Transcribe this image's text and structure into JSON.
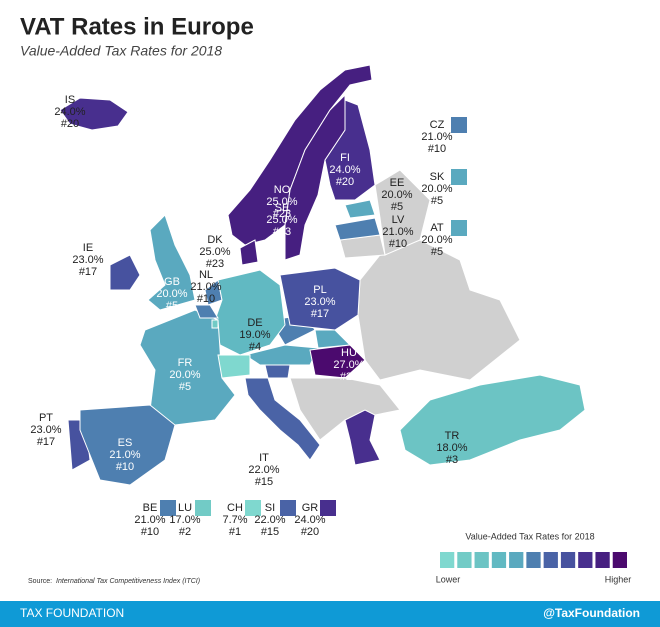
{
  "title": "VAT Rates in Europe",
  "subtitle": "Value-Added Tax Rates for 2018",
  "countries": [
    {
      "code": "IS",
      "rate": "24.0%",
      "rank": "#20",
      "color": "#482f8e"
    },
    {
      "code": "CZ",
      "rate": "21.0%",
      "rank": "#10",
      "color": "#4e7fb0"
    },
    {
      "code": "SK",
      "rate": "20.0%",
      "rank": "#5",
      "color": "#5aa9bf"
    },
    {
      "code": "AT",
      "rate": "20.0%",
      "rank": "#5",
      "color": "#5aa9bf"
    },
    {
      "code": "FI",
      "rate": "24.0%",
      "rank": "#20",
      "color": "#482f8e"
    },
    {
      "code": "EE",
      "rate": "20.0%",
      "rank": "#5",
      "color": "#5aa9bf"
    },
    {
      "code": "LV",
      "rate": "21.0%",
      "rank": "#10",
      "color": "#4e7fb0"
    },
    {
      "code": "NO",
      "rate": "25.0%",
      "rank": "#23",
      "color": "#461f80"
    },
    {
      "code": "SE",
      "rate": "25.0%",
      "rank": "#23",
      "color": "#461f80"
    },
    {
      "code": "DK",
      "rate": "25.0%",
      "rank": "#23",
      "color": "#461f80"
    },
    {
      "code": "IE",
      "rate": "23.0%",
      "rank": "#17",
      "color": "#47529f"
    },
    {
      "code": "NL",
      "rate": "21.0%",
      "rank": "#10",
      "color": "#4e7fb0"
    },
    {
      "code": "GB",
      "rate": "20.0%",
      "rank": "#5",
      "color": "#5aa9bf"
    },
    {
      "code": "PL",
      "rate": "23.0%",
      "rank": "#17",
      "color": "#47529f"
    },
    {
      "code": "DE",
      "rate": "19.0%",
      "rank": "#4",
      "color": "#61b9c2"
    },
    {
      "code": "HU",
      "rate": "27.0%",
      "rank": "#26",
      "color": "#4b0a6e"
    },
    {
      "code": "FR",
      "rate": "20.0%",
      "rank": "#5",
      "color": "#5aa9bf"
    },
    {
      "code": "PT",
      "rate": "23.0%",
      "rank": "#17",
      "color": "#47529f"
    },
    {
      "code": "ES",
      "rate": "21.0%",
      "rank": "#10",
      "color": "#4e7fb0"
    },
    {
      "code": "IT",
      "rate": "22.0%",
      "rank": "#15",
      "color": "#4a63a6"
    },
    {
      "code": "TR",
      "rate": "18.0%",
      "rank": "#3",
      "color": "#6cc4c4"
    },
    {
      "code": "BE",
      "rate": "21.0%",
      "rank": "#10",
      "color": "#4e7fb0"
    },
    {
      "code": "LU",
      "rate": "17.0%",
      "rank": "#2",
      "color": "#72cbc6"
    },
    {
      "code": "CH",
      "rate": "7.7%",
      "rank": "#1",
      "color": "#7fd8cf"
    },
    {
      "code": "SI",
      "rate": "22.0%",
      "rank": "#15",
      "color": "#4a63a6"
    },
    {
      "code": "GR",
      "rate": "24.0%",
      "rank": "#20",
      "color": "#482f8e"
    }
  ],
  "legend": {
    "title": "Value-Added Tax Rates for 2018",
    "low": "Lower",
    "high": "Higher",
    "colors": [
      "#7fd8cf",
      "#72cbc6",
      "#6cc4c4",
      "#61b9c2",
      "#5aa9bf",
      "#4e7fb0",
      "#4a63a6",
      "#47529f",
      "#482f8e",
      "#461f80",
      "#4b0a6e"
    ]
  },
  "source": {
    "label": "Source:",
    "text": "International Tax Competitiveness Index (ITCI)"
  },
  "footer": {
    "left": "TAX FOUNDATION",
    "right": "@TaxFoundation"
  }
}
